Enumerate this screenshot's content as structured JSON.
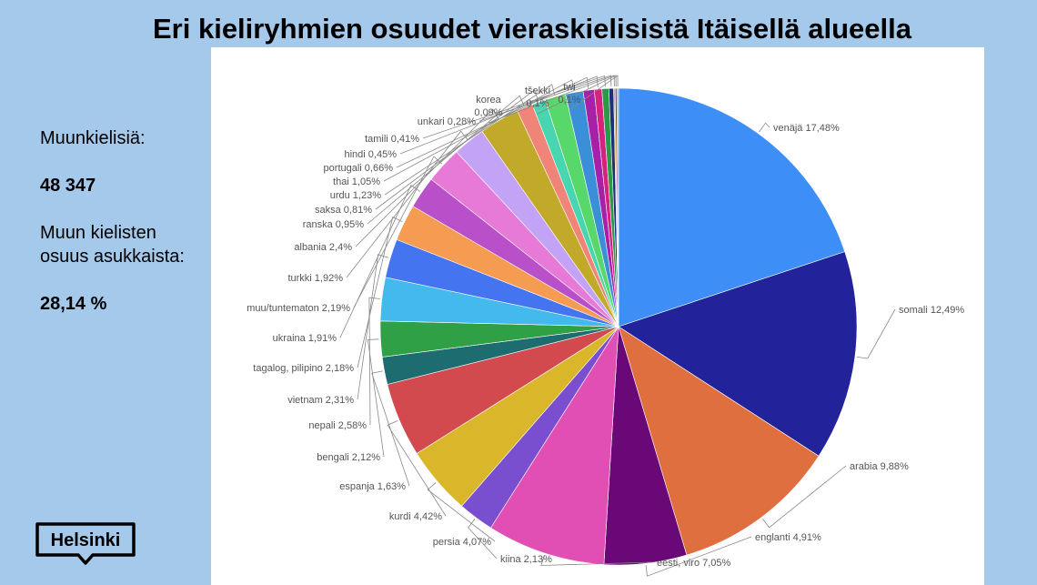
{
  "title": "Eri kieliryhmien osuudet vieraskielisistä Itäisellä alueella",
  "stats": {
    "foreign_label": "Muunkielisiä:",
    "foreign_value": "48 347",
    "share_label_line1": "Muun kielisten",
    "share_label_line2": "osuus asukkaista:",
    "share_value": "28,14 %"
  },
  "logo_text": "Helsinki",
  "chart_data": {
    "type": "pie",
    "slices": [
      {
        "label": "venäjä",
        "value": 17.48,
        "text": "venäjä 17,48%",
        "color": "#3d8ef7"
      },
      {
        "label": "somali",
        "value": 12.49,
        "text": "somali 12,49%",
        "color": "#22229a"
      },
      {
        "label": "arabia",
        "value": 9.88,
        "text": "arabia 9,88%",
        "color": "#e06f3f"
      },
      {
        "label": "englanti",
        "value": 4.91,
        "text": "englanti 4,91%",
        "color": "#6a0877"
      },
      {
        "label": "eesti, viro",
        "value": 7.05,
        "text": "eesti, viro 7,05%",
        "color": "#e14fb5"
      },
      {
        "label": "kiina",
        "value": 2.13,
        "text": "kiina 2,13%",
        "color": "#7a4fcf"
      },
      {
        "label": "persia",
        "value": 4.07,
        "text": "persia 4,07%",
        "color": "#d9b62a"
      },
      {
        "label": "kurdi",
        "value": 4.42,
        "text": "kurdi 4,42%",
        "color": "#d24a4e"
      },
      {
        "label": "espanja",
        "value": 1.63,
        "text": "espanja 1,63%",
        "color": "#1d6c70"
      },
      {
        "label": "bengali",
        "value": 2.12,
        "text": "bengali 2,12%",
        "color": "#2fa046"
      },
      {
        "label": "nepali",
        "value": 2.58,
        "text": "nepali 2,58%",
        "color": "#43b9ee"
      },
      {
        "label": "vietnam",
        "value": 2.31,
        "text": "vietnam 2,31%",
        "color": "#4474f0"
      },
      {
        "label": "tagalog, pilipino",
        "value": 2.18,
        "text": "tagalog, pilipino 2,18%",
        "color": "#f59b52"
      },
      {
        "label": "ukraina",
        "value": 1.91,
        "text": "ukraina 1,91%",
        "color": "#b94fc9"
      },
      {
        "label": "muu/tuntematon",
        "value": 2.19,
        "text": "muu/tuntematon 2,19%",
        "color": "#e77ad7"
      },
      {
        "label": "turkki",
        "value": 1.92,
        "text": "turkki 1,92%",
        "color": "#c3a3f5"
      },
      {
        "label": "albania",
        "value": 2.4,
        "text": "albania 2,4%",
        "color": "#c1a92a"
      },
      {
        "label": "ranska",
        "value": 0.95,
        "text": "ranska 0,95%",
        "color": "#f08478"
      },
      {
        "label": "saksa",
        "value": 0.81,
        "text": "saksa 0,81%",
        "color": "#48d6b0"
      },
      {
        "label": "urdu",
        "value": 1.23,
        "text": "urdu 1,23%",
        "color": "#58d86a"
      },
      {
        "label": "thai",
        "value": 1.05,
        "text": "thai 1,05%",
        "color": "#3b8fd9"
      },
      {
        "label": "portugali",
        "value": 0.66,
        "text": "portugali 0,66%",
        "color": "#a620a8"
      },
      {
        "label": "hindi",
        "value": 0.45,
        "text": "hindi 0,45%",
        "color": "#d6217e"
      },
      {
        "label": "tamili",
        "value": 0.41,
        "text": "tamili 0,41%",
        "color": "#2a9a48"
      },
      {
        "label": "unkari",
        "value": 0.28,
        "text": "unkari 0,28%",
        "color": "#1c2f7a"
      },
      {
        "label": "korea",
        "value": 0.09,
        "text": "korea 0,09%",
        "color": "#e2b93a"
      },
      {
        "label": "tšekki",
        "value": 0.1,
        "text": "tšekki 0,1%",
        "color": "#8d2e86"
      },
      {
        "label": "twi",
        "value": 0.1,
        "text": "twi 0,1%",
        "color": "#9ea7b0"
      }
    ]
  }
}
